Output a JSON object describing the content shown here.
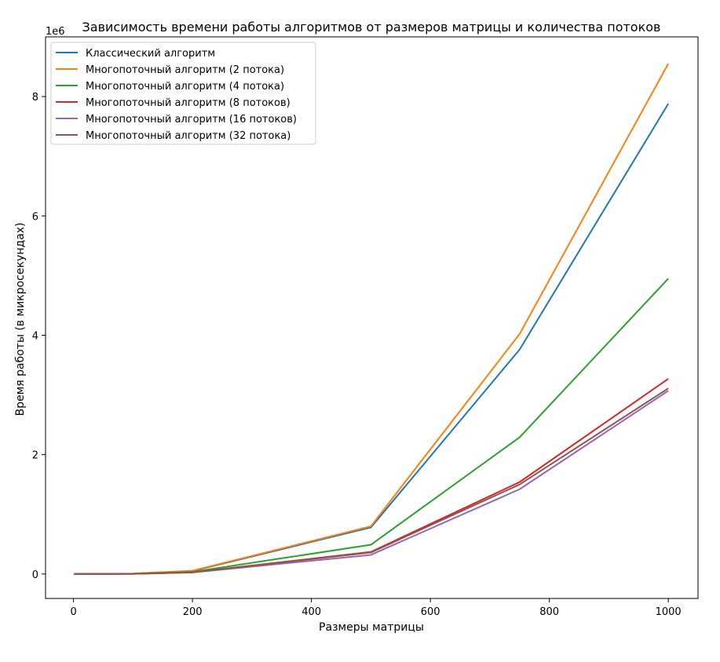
{
  "chart_data": {
    "type": "line",
    "title": "Зависимость времени работы алгоритмов от размеров матрицы и количества потоков",
    "xlabel": "Размеры матрицы",
    "ylabel": "Время работы (в микросекундах)",
    "y_multiplier_label": "1e6",
    "xlim": [
      -47,
      1050
    ],
    "ylim": [
      -0.41,
      9.0
    ],
    "xticks": [
      0,
      200,
      400,
      600,
      800,
      1000
    ],
    "yticks": [
      0,
      2,
      4,
      6,
      8
    ],
    "grid": false,
    "legend_position": "top-left",
    "x": [
      1,
      10,
      50,
      100,
      200,
      500,
      750,
      1000
    ],
    "series": [
      {
        "name": "Классический алгоритм",
        "color": "#1f77b4",
        "values": [
          0,
          0,
          0.002,
          0.006,
          0.05,
          0.78,
          3.76,
          7.88
        ]
      },
      {
        "name": "Многопоточный алгоритм (2 потока)",
        "color": "#ff7f0e",
        "values": [
          0,
          0,
          0.002,
          0.007,
          0.055,
          0.8,
          4.02,
          8.55
        ]
      },
      {
        "name": "Многопоточный алгоритм (4 потока)",
        "color": "#2ca02c",
        "values": [
          0,
          0,
          0.001,
          0.004,
          0.035,
          0.49,
          2.29,
          4.95
        ]
      },
      {
        "name": "Многопоточный алгоритм (8 потоков)",
        "color": "#d62728",
        "values": [
          0,
          0,
          0.001,
          0.003,
          0.028,
          0.37,
          1.54,
          3.27
        ]
      },
      {
        "name": "Многопоточный алгоритм (16 потоков)",
        "color": "#9467bd",
        "values": [
          0,
          0,
          0.001,
          0.003,
          0.025,
          0.32,
          1.42,
          3.07
        ]
      },
      {
        "name": "Многопоточный алгоритм (32 потока)",
        "color": "#8c564b",
        "values": [
          0,
          0,
          0.001,
          0.003,
          0.027,
          0.36,
          1.5,
          3.11
        ]
      }
    ]
  }
}
